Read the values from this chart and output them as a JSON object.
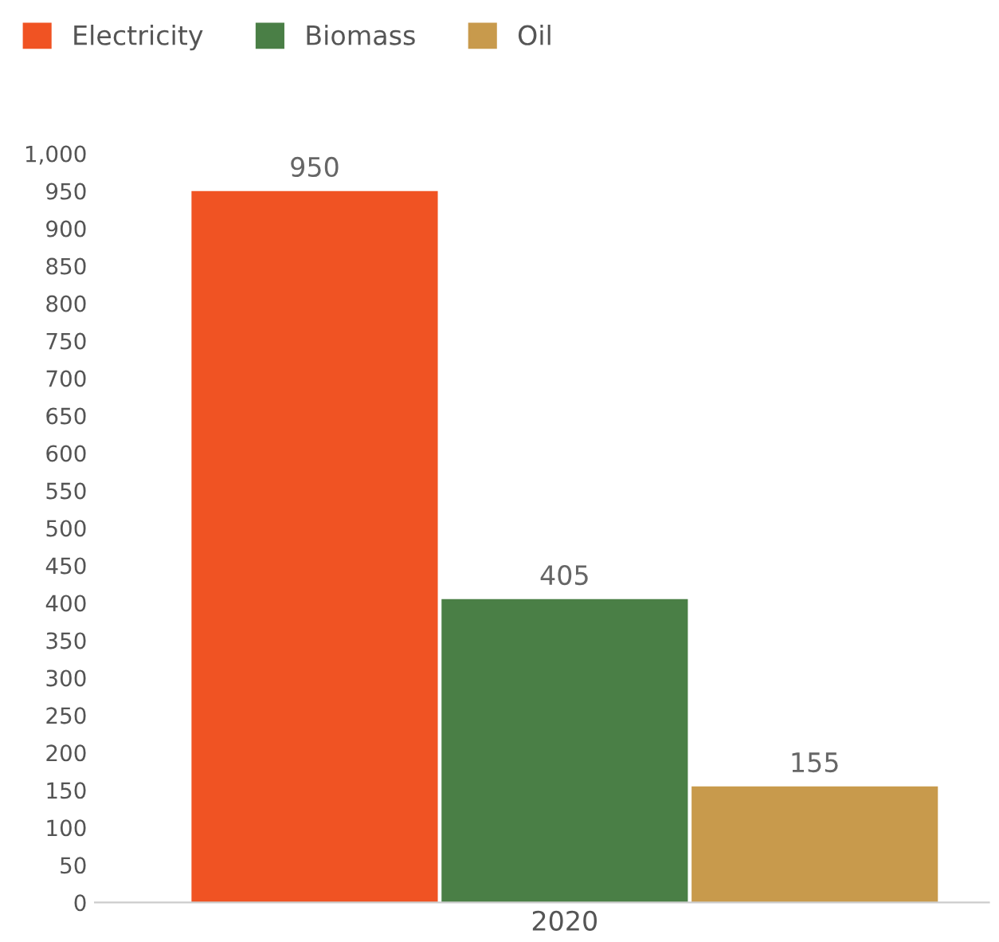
{
  "chart_data": {
    "type": "bar",
    "categories": [
      "2020"
    ],
    "series": [
      {
        "name": "Electricity",
        "color": "#f05323",
        "values": [
          950
        ]
      },
      {
        "name": "Biomass",
        "color": "#4a7f46",
        "values": [
          405
        ]
      },
      {
        "name": "Oil",
        "color": "#c89a4c",
        "values": [
          155
        ]
      }
    ],
    "ylim": [
      0,
      1000
    ],
    "yticks": [
      0,
      50,
      100,
      150,
      200,
      250,
      300,
      350,
      400,
      450,
      500,
      550,
      600,
      650,
      700,
      750,
      800,
      850,
      900,
      950,
      {
        "value": 1000,
        "label": "1,000"
      }
    ],
    "data_labels": true,
    "legend": "top left",
    "grid": false
  }
}
